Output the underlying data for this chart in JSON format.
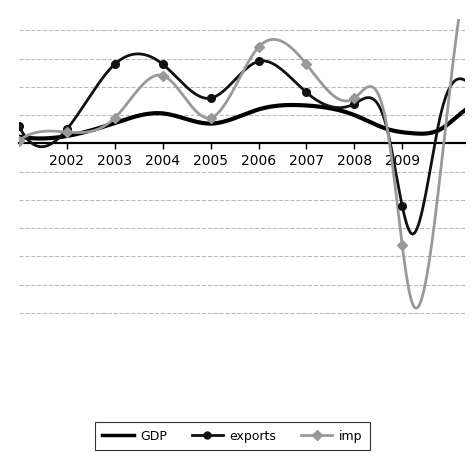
{
  "years": [
    2001,
    2002,
    2003,
    2004,
    2005,
    2006,
    2007,
    2008,
    2008.7,
    2009.2,
    2009.8,
    2010,
    2011
  ],
  "gdp": [
    1.2,
    1.3,
    3.6,
    5.3,
    3.5,
    6.0,
    6.7,
    5.0,
    2.5,
    1.8,
    2.5,
    3.7,
    4.2
  ],
  "exports": [
    3.0,
    2.5,
    14.0,
    14.0,
    8.0,
    14.5,
    9.0,
    7.0,
    2.0,
    -16.0,
    5.0,
    10.0,
    8.0
  ],
  "imports": [
    0.5,
    2.0,
    4.5,
    12.0,
    4.5,
    17.0,
    14.0,
    8.0,
    2.0,
    -28.0,
    -5.0,
    10.0,
    6.0
  ],
  "gdp_color": "#000000",
  "exports_color": "#111111",
  "imports_color": "#999999",
  "background_color": "#ffffff",
  "grid_color": "#bbbbbb",
  "ylim_top": 22,
  "ylim_bottom": -35,
  "xmin": 2001.0,
  "xmax": 2010.3,
  "zero_line_y": 0,
  "xtick_positions": [
    2002,
    2003,
    2004,
    2005,
    2006,
    2007,
    2008,
    2009
  ],
  "exports_marker_years": [
    2001,
    2002,
    2003,
    2004,
    2005,
    2006,
    2007,
    2008,
    2009
  ],
  "imports_marker_years": [
    2001,
    2002,
    2003,
    2004,
    2005,
    2006,
    2007,
    2008,
    2009
  ],
  "gdp_linewidth": 3.0,
  "exports_linewidth": 2.0,
  "imports_linewidth": 2.0,
  "grid_yticks": [
    20,
    15,
    10,
    5,
    -5,
    -10,
    -15,
    -20,
    -25,
    -30
  ],
  "hline_y": 0,
  "legend_labels": [
    "GDP",
    "exports",
    "imp"
  ]
}
